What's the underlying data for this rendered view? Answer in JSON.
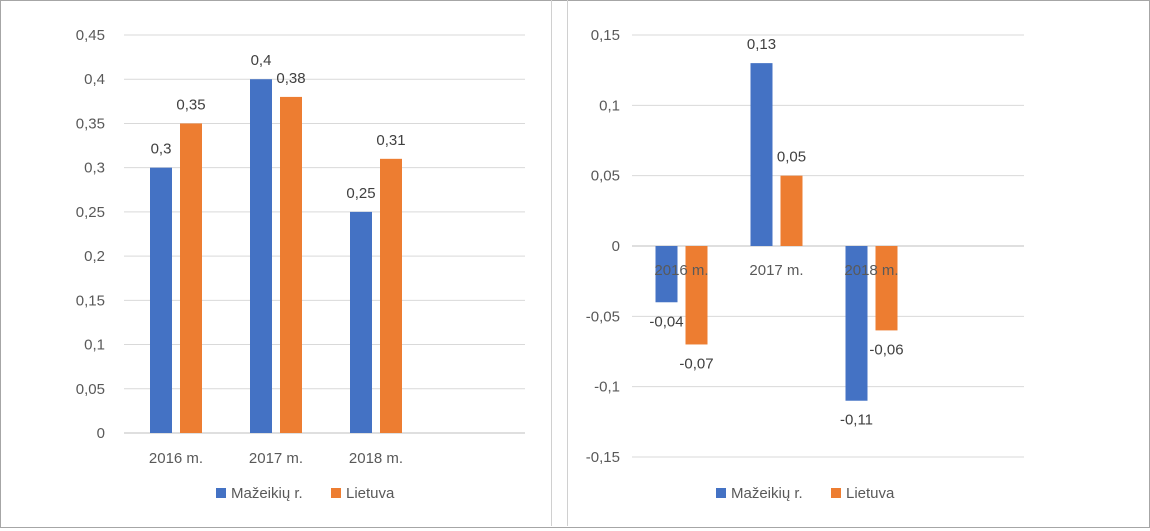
{
  "chart_data": [
    {
      "type": "bar",
      "categories": [
        "2016 m.",
        "2017 m.",
        "2018 m."
      ],
      "series": [
        {
          "name": "Mažeikių r.",
          "values": [
            0.3,
            0.4,
            0.25
          ],
          "labels": [
            "0,3",
            "0,4",
            "0,25"
          ],
          "color": "#4472c4"
        },
        {
          "name": "Lietuva",
          "values": [
            0.35,
            0.38,
            0.31
          ],
          "labels": [
            "0,35",
            "0,38",
            "0,31"
          ],
          "color": "#ed7d31"
        }
      ],
      "ylim": [
        0,
        0.45
      ],
      "yticks": [
        0,
        0.05,
        0.1,
        0.15,
        0.2,
        0.25,
        0.3,
        0.35,
        0.4,
        0.45
      ],
      "ytick_labels": [
        "0",
        "0,05",
        "0,1",
        "0,15",
        "0,2",
        "0,25",
        "0,3",
        "0,35",
        "0,4",
        "0,45"
      ],
      "grid": true,
      "legend": "bottom"
    },
    {
      "type": "bar",
      "categories": [
        "2016 m.",
        "2017 m.",
        "2018 m."
      ],
      "series": [
        {
          "name": "Mažeikių r.",
          "values": [
            -0.04,
            0.13,
            -0.11
          ],
          "labels": [
            "-0,04",
            "0,13",
            "-0,11"
          ],
          "color": "#4472c4"
        },
        {
          "name": "Lietuva",
          "values": [
            -0.07,
            0.05,
            -0.06
          ],
          "labels": [
            "-0,07",
            "0,05",
            "-0,06"
          ],
          "color": "#ed7d31"
        }
      ],
      "ylim": [
        -0.15,
        0.15
      ],
      "yticks": [
        -0.15,
        -0.1,
        -0.05,
        0,
        0.05,
        0.1,
        0.15
      ],
      "ytick_labels": [
        "-0,15",
        "-0,1",
        "-0,05",
        "0",
        "0,05",
        "0,1",
        "0,15"
      ],
      "grid": true,
      "legend": "bottom"
    }
  ]
}
